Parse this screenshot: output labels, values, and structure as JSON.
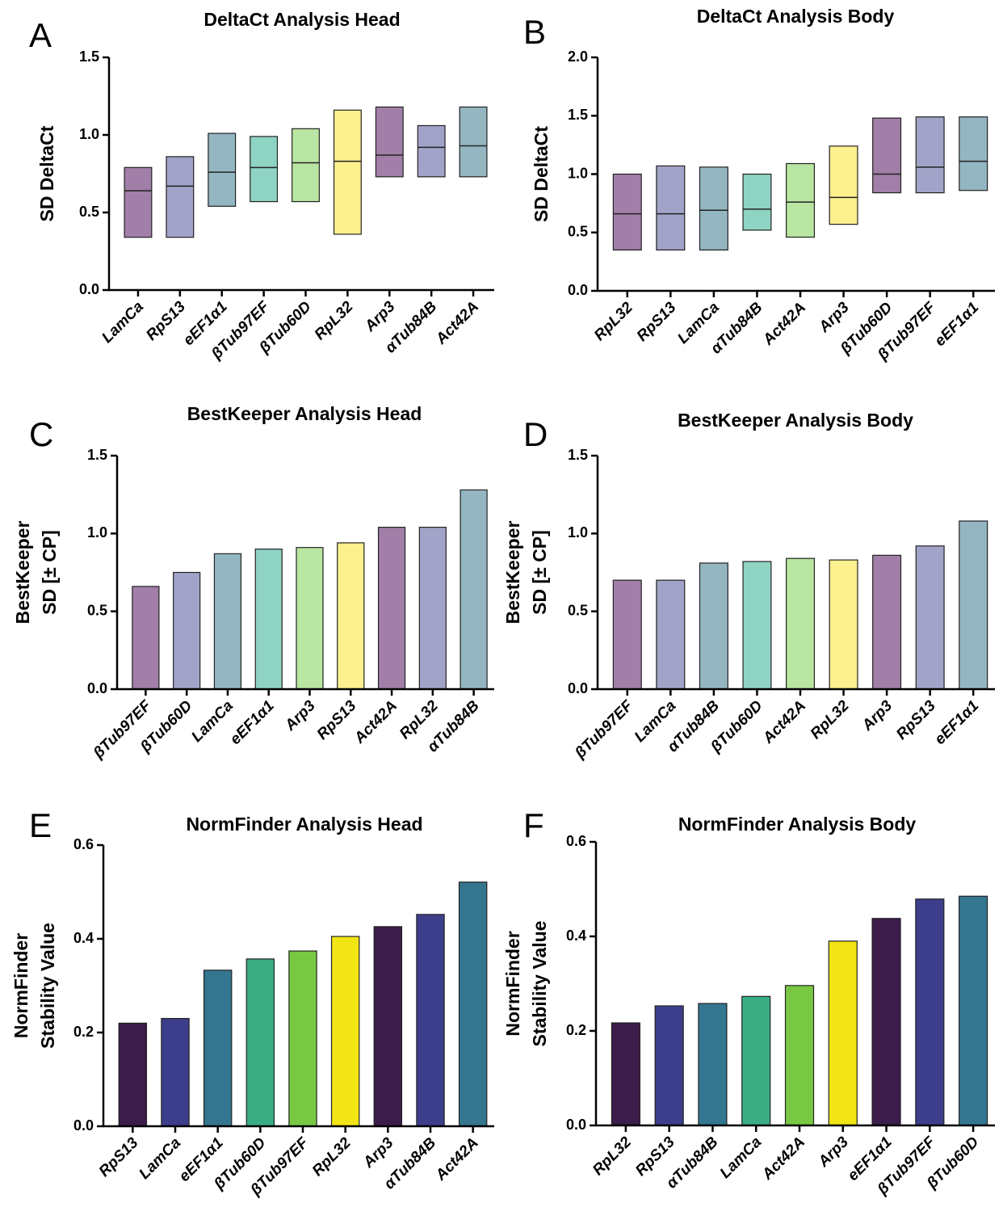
{
  "chart_data": [
    {
      "type": "floating-box",
      "panel": "A",
      "title": "DeltaCt Analysis Head",
      "ylabel": [
        "SD DeltaCt"
      ],
      "categories": [
        "LamCa",
        "RpS13",
        "eEF1α1",
        "βTub97EF",
        "βTub60D",
        "RpL32",
        "Arp3",
        "αTub84B",
        "Act42A"
      ],
      "low": [
        0.34,
        0.34,
        0.54,
        0.57,
        0.57,
        0.36,
        0.73,
        0.73,
        0.73
      ],
      "mid": [
        0.64,
        0.67,
        0.76,
        0.79,
        0.82,
        0.83,
        0.87,
        0.92,
        0.93
      ],
      "high": [
        0.79,
        0.86,
        1.01,
        0.99,
        1.04,
        1.16,
        1.18,
        1.06,
        1.18
      ],
      "colors": [
        "#a17fa8",
        "#a2a3c8",
        "#93b6c1",
        "#8fd3c3",
        "#b9e6a2",
        "#fdf08f",
        "#a17fa8",
        "#a2a3c8",
        "#93b6c1"
      ],
      "ylim": [
        0,
        1.5
      ],
      "yticks": [
        {
          "value": 0,
          "label": "0.0"
        },
        0.5,
        {
          "value": 1,
          "label": "1.0"
        },
        1.5
      ]
    },
    {
      "type": "floating-box",
      "panel": "B",
      "title": "DeltaCt Analysis Body",
      "ylabel": [
        "SD DeltaCt"
      ],
      "categories": [
        "RpL32",
        "RpS13",
        "LamCa",
        "αTub84B",
        "Act42A",
        "Arp3",
        "βTub60D",
        "βTub97EF",
        "eEF1α1"
      ],
      "low": [
        0.35,
        0.35,
        0.35,
        0.52,
        0.46,
        0.57,
        0.84,
        0.84,
        0.86
      ],
      "mid": [
        0.66,
        0.66,
        0.69,
        0.7,
        0.76,
        0.8,
        1.0,
        1.06,
        1.11
      ],
      "high": [
        1.0,
        1.07,
        1.06,
        1.0,
        1.09,
        1.24,
        1.48,
        1.49,
        1.49
      ],
      "colors": [
        "#a17fa8",
        "#a2a3c8",
        "#93b6c1",
        "#8fd3c3",
        "#b9e6a2",
        "#fdf08f",
        "#a17fa8",
        "#a2a3c8",
        "#93b6c1"
      ],
      "ylim": [
        0,
        2
      ],
      "yticks": [
        {
          "value": 0,
          "label": "0.0"
        },
        0.5,
        {
          "value": 1,
          "label": "1.0"
        },
        1.5,
        {
          "value": 2,
          "label": "2.0"
        }
      ]
    },
    {
      "type": "bar",
      "panel": "C",
      "title": "BestKeeper Analysis Head",
      "ylabel": [
        "BestKeeper",
        "SD [± CP]"
      ],
      "categories": [
        "βTub97EF",
        "βTub60D",
        "LamCa",
        "eEF1α1",
        "Arp3",
        "RpS13",
        "Act42A",
        "RpL32",
        "αTub84B"
      ],
      "values": [
        0.66,
        0.75,
        0.87,
        0.9,
        0.91,
        0.94,
        1.04,
        1.04,
        1.28
      ],
      "colors": [
        "#a17fa8",
        "#a2a3c8",
        "#93b6c1",
        "#8fd3c3",
        "#b9e6a2",
        "#fdf08f",
        "#a17fa8",
        "#a2a3c8",
        "#93b6c1"
      ],
      "ylim": [
        0,
        1.5
      ],
      "yticks": [
        {
          "value": 0,
          "label": "0.0"
        },
        0.5,
        {
          "value": 1,
          "label": "1.0"
        },
        1.5
      ]
    },
    {
      "type": "bar",
      "panel": "D",
      "title": "BestKeeper Analysis Body",
      "ylabel": [
        "BestKeeper",
        "SD [± CP]"
      ],
      "categories": [
        "βTub97EF",
        "LamCa",
        "αTub84B",
        "βTub60D",
        "Act42A",
        "RpL32",
        "Arp3",
        "RpS13",
        "eEF1α1"
      ],
      "values": [
        0.7,
        0.7,
        0.81,
        0.82,
        0.84,
        0.83,
        0.86,
        0.92,
        1.08
      ],
      "colors": [
        "#a17fa8",
        "#a2a3c8",
        "#93b6c1",
        "#8fd3c3",
        "#b9e6a2",
        "#fdf08f",
        "#a17fa8",
        "#a2a3c8",
        "#93b6c1"
      ],
      "ylim": [
        0,
        1.5
      ],
      "yticks": [
        {
          "value": 0,
          "label": "0.0"
        },
        0.5,
        {
          "value": 1,
          "label": "1.0"
        },
        1.5
      ]
    },
    {
      "type": "bar",
      "panel": "E",
      "title": "NormFinder Analysis Head",
      "ylabel": [
        "NormFinder",
        "Stability Value"
      ],
      "categories": [
        "RpS13",
        "LamCa",
        "eEF1α1",
        "βTub60D",
        "βTub97EF",
        "RpL32",
        "Arp3",
        "αTub84B",
        "Act42A"
      ],
      "values": [
        0.22,
        0.23,
        0.333,
        0.357,
        0.374,
        0.405,
        0.426,
        0.452,
        0.521
      ],
      "colors": [
        "#3b1c4a",
        "#3c3e8c",
        "#34768f",
        "#3aad84",
        "#78c843",
        "#f2e515",
        "#3b1c4a",
        "#3c3e8c",
        "#34768f"
      ],
      "ylim": [
        0,
        0.6
      ],
      "yticks": [
        {
          "value": 0,
          "label": "0.0"
        },
        0.2,
        0.4,
        0.6
      ]
    },
    {
      "type": "bar",
      "panel": "F",
      "title": "NormFinder Analysis Body",
      "ylabel": [
        "NormFinder",
        "Stability Value"
      ],
      "categories": [
        "RpL32",
        "RpS13",
        "αTub84B",
        "LamCa",
        "Act42A",
        "Arp3",
        "eEF1α1",
        "βTub97EF",
        "βTub60D"
      ],
      "values": [
        0.217,
        0.253,
        0.258,
        0.273,
        0.296,
        0.39,
        0.438,
        0.479,
        0.485
      ],
      "colors": [
        "#3b1c4a",
        "#3c3e8c",
        "#34768f",
        "#3aad84",
        "#78c843",
        "#f2e515",
        "#3b1c4a",
        "#3c3e8c",
        "#34768f"
      ],
      "ylim": [
        0,
        0.6
      ],
      "yticks": [
        {
          "value": 0,
          "label": "0.0"
        },
        0.2,
        0.4,
        0.6
      ]
    }
  ]
}
